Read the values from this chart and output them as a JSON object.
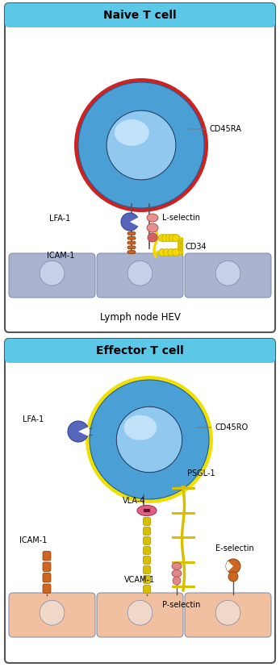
{
  "fig_width": 3.47,
  "fig_height": 8.27,
  "dpi": 100,
  "panel1_title": "Naive T cell",
  "panel2_title": "Effector T cell",
  "bottom_label1": "Lymph node HEV",
  "header_bg": "#5bc8e8",
  "panel_bg": "#ffffff",
  "cell_body_color": "#4a9fd4",
  "cell_body_edge": "#2060a0",
  "cell_nucleus_color": "#90c8f0",
  "cell_nucleus_light": "#d8eeff",
  "naive_ring_color": "#cc2222",
  "effector_ring_color": "#f0e000",
  "lfa1_color": "#5566bb",
  "lfa1_edge": "#334499",
  "icam_color": "#cc6622",
  "icam_edge": "#883300",
  "lsel_color1": "#e89090",
  "lsel_color2": "#d06060",
  "lsel_edge": "#aa4444",
  "carbo_color": "#f0d800",
  "carbo_edge": "#c0a800",
  "cd34_color": "#d8c000",
  "vcam_color": "#d8c000",
  "vcam_edge": "#a09000",
  "psgl_color": "#d8c000",
  "psel_color": "#e08888",
  "psel_edge": "#aa4444",
  "esel_color": "#cc6622",
  "esel_edge": "#884400",
  "vla4_color": "#e06080",
  "vla4_edge": "#aa3355",
  "hev_cell_color": "#aab4d0",
  "hev_cell_edge": "#7788aa",
  "hev_nuc_color": "#c8d0e8",
  "inf_cell_color": "#f0c0a0",
  "inf_cell_edge": "#c09070",
  "inf_nuc_color": "#f0d8c8",
  "text_color": "#111111",
  "fs_title": 10,
  "fs_label": 7
}
